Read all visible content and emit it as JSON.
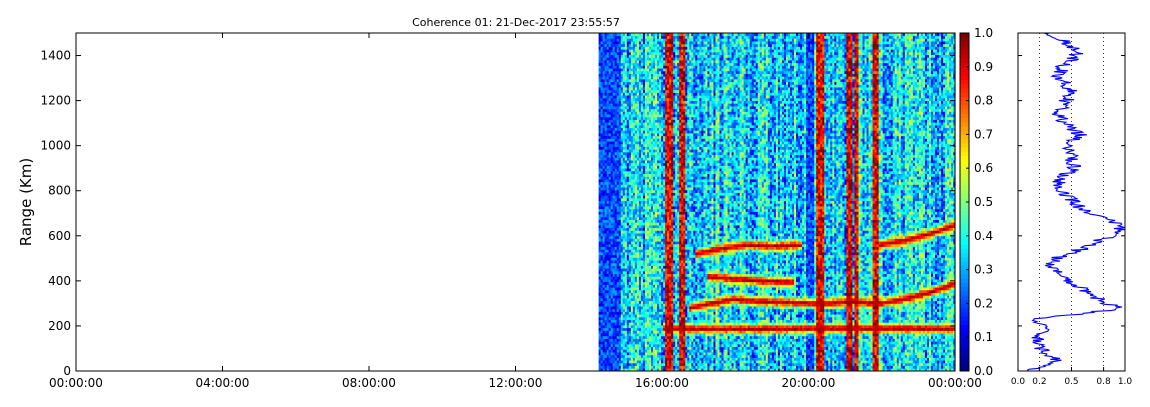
{
  "chart_data": [
    {
      "type": "heatmap",
      "title": "Coherence 01: 21-Dec-2017 23:55:57",
      "xlabel": "",
      "ylabel": "Range (Km)",
      "x_tick_labels": [
        "00:00:00",
        "04:00:00",
        "08:00:00",
        "12:00:00",
        "16:00:00",
        "20:00:00",
        "00:00:00"
      ],
      "x_ticks_hours": [
        0,
        4,
        8,
        12,
        16,
        20,
        24
      ],
      "xlim_hours": [
        0,
        24
      ],
      "y_ticks": [
        0,
        200,
        400,
        600,
        800,
        1000,
        1200,
        1400
      ],
      "y_tick_labels": [
        "0",
        "200",
        "400",
        "600",
        "800",
        "1000",
        "1200",
        "1400"
      ],
      "ylim": [
        0,
        1500
      ],
      "data_start_hour": 14.27,
      "data_end_hour": 24,
      "colormap": "jet",
      "colorbar": {
        "ticks": [
          "0.0",
          "0.1",
          "0.2",
          "0.3",
          "0.4",
          "0.5",
          "0.6",
          "0.7",
          "0.8",
          "0.9",
          "1.0"
        ],
        "range": [
          0,
          1
        ]
      },
      "high_coherence_columns_hours": [
        {
          "start": 16.05,
          "end": 16.25
        },
        {
          "start": 16.45,
          "end": 16.6
        },
        {
          "start": 20.2,
          "end": 20.38
        },
        {
          "start": 21.0,
          "end": 21.15
        },
        {
          "start": 21.25,
          "end": 21.35
        },
        {
          "start": 21.7,
          "end": 21.9
        }
      ],
      "low_coherence_columns_hours": [
        {
          "start": 14.27,
          "end": 14.85
        },
        {
          "start": 19.9,
          "end": 20.1
        }
      ],
      "high_coherence_bands": [
        {
          "points": [
            [
              16.7,
              280
            ],
            [
              17.3,
              300
            ],
            [
              17.9,
              320
            ],
            [
              18.6,
              310
            ],
            [
              19.5,
              305
            ],
            [
              20.4,
              300
            ],
            [
              21.2,
              310
            ],
            [
              21.9,
              300
            ],
            [
              22.6,
              320
            ],
            [
              23.3,
              350
            ],
            [
              24.0,
              390
            ]
          ]
        },
        {
          "points": [
            [
              16.9,
              520
            ],
            [
              17.6,
              545
            ],
            [
              18.3,
              560
            ],
            [
              19.0,
              555
            ],
            [
              19.8,
              560
            ]
          ]
        },
        {
          "points": [
            [
              21.9,
              560
            ],
            [
              22.6,
              580
            ],
            [
              23.3,
              610
            ],
            [
              24.0,
              650
            ]
          ]
        },
        {
          "points": [
            [
              17.2,
              420
            ],
            [
              18.0,
              410
            ],
            [
              18.8,
              400
            ],
            [
              19.6,
              395
            ]
          ]
        },
        {
          "points": [
            [
              16.0,
              190
            ],
            [
              17.0,
              188
            ],
            [
              18.5,
              188
            ],
            [
              20.0,
              190
            ],
            [
              22.0,
              190
            ],
            [
              24.0,
              188
            ]
          ]
        }
      ],
      "grid": false
    },
    {
      "type": "line",
      "title": "",
      "xlabel": "",
      "ylabel": "",
      "x_tick_labels": [
        "0.0",
        "0.2",
        "0.5",
        "0.8",
        "1.0"
      ],
      "x_ticks": [
        0.0,
        0.2,
        0.5,
        0.8,
        1.0
      ],
      "xlim": [
        0,
        1
      ],
      "ylim": [
        0,
        1500
      ],
      "vertical_grid_at": [
        0.2,
        0.5,
        0.8
      ],
      "grid_style": "dotted",
      "series": [
        {
          "color": "#0000ff",
          "profile_points": [
            [
              0,
              0.12
            ],
            [
              50,
              0.35
            ],
            [
              100,
              0.22
            ],
            [
              150,
              0.18
            ],
            [
              200,
              0.3
            ],
            [
              230,
              0.1
            ],
            [
              260,
              0.7
            ],
            [
              280,
              0.98
            ],
            [
              300,
              0.82
            ],
            [
              340,
              0.68
            ],
            [
              380,
              0.55
            ],
            [
              420,
              0.42
            ],
            [
              460,
              0.3
            ],
            [
              500,
              0.35
            ],
            [
              550,
              0.65
            ],
            [
              600,
              0.85
            ],
            [
              640,
              0.99
            ],
            [
              680,
              0.8
            ],
            [
              720,
              0.6
            ],
            [
              760,
              0.5
            ],
            [
              800,
              0.4
            ],
            [
              850,
              0.38
            ],
            [
              900,
              0.52
            ],
            [
              950,
              0.5
            ],
            [
              1000,
              0.45
            ],
            [
              1050,
              0.58
            ],
            [
              1100,
              0.42
            ],
            [
              1150,
              0.38
            ],
            [
              1200,
              0.45
            ],
            [
              1250,
              0.5
            ],
            [
              1300,
              0.38
            ],
            [
              1350,
              0.42
            ],
            [
              1400,
              0.55
            ],
            [
              1450,
              0.48
            ],
            [
              1500,
              0.3
            ]
          ]
        }
      ]
    }
  ]
}
